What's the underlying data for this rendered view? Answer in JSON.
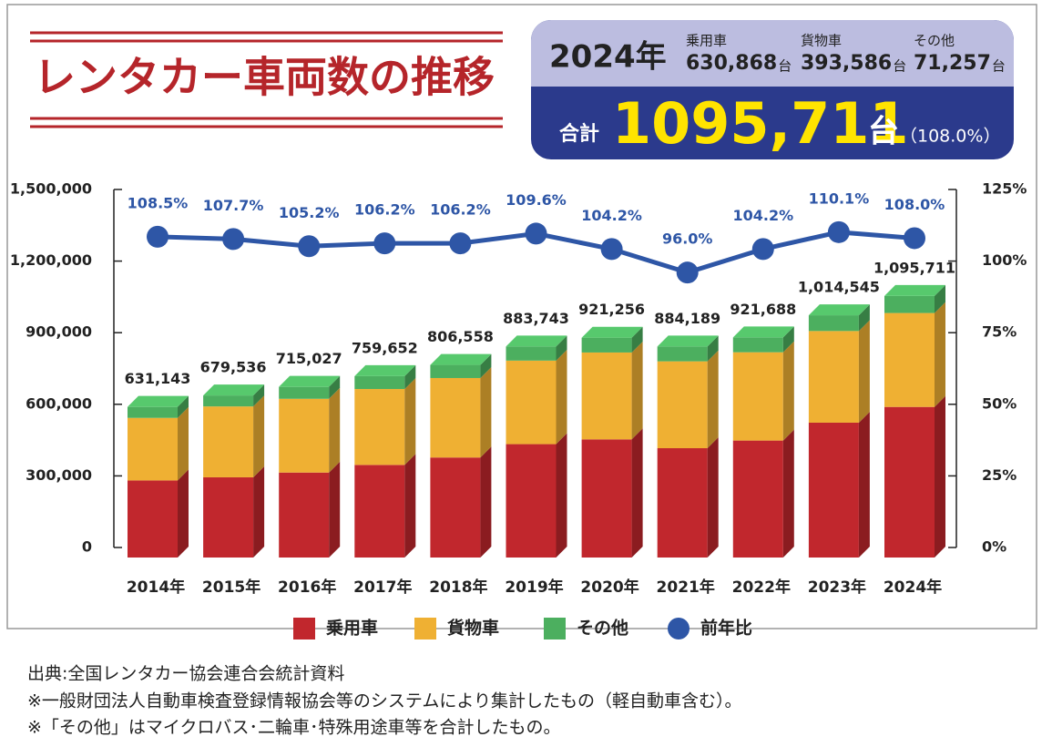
{
  "title": "レンタカー車両数の推移",
  "summary": {
    "year": "2024年",
    "items": [
      {
        "name": "乗用車",
        "value": "630,868",
        "unit": "台"
      },
      {
        "name": "貨物車",
        "value": "393,586",
        "unit": "台"
      },
      {
        "name": "その他",
        "value": "71,257",
        "unit": "台"
      }
    ],
    "total_label": "合計",
    "total": "1095,711",
    "total_unit": "台",
    "ratio": "（108.0%）"
  },
  "chart_data": {
    "type": "bar",
    "categories": [
      "2014年",
      "2015年",
      "2016年",
      "2017年",
      "2018年",
      "2019年",
      "2020年",
      "2021年",
      "2022年",
      "2023年",
      "2024年"
    ],
    "series": [
      {
        "name": "乗用車",
        "color": "#c1272d",
        "values": [
          323000,
          336000,
          356000,
          388000,
          419000,
          475000,
          495000,
          458000,
          490000,
          565000,
          630868
        ]
      },
      {
        "name": "貨物車",
        "color": "#efb033",
        "values": [
          262000,
          297000,
          309000,
          318000,
          333000,
          350000,
          364000,
          364000,
          370000,
          384000,
          393586
        ]
      },
      {
        "name": "その他",
        "color": "#4caf5f",
        "values": [
          46000,
          46000,
          50000,
          54000,
          55000,
          59000,
          62000,
          62000,
          62000,
          66000,
          71257
        ]
      },
      {
        "name": "前年比",
        "color": "#2e56a6",
        "type": "line",
        "axis": "y2",
        "values": [
          108.5,
          107.7,
          105.2,
          106.2,
          106.2,
          109.6,
          104.2,
          96.0,
          104.2,
          110.1,
          108.0
        ],
        "value_labels": [
          "108.5%",
          "107.7%",
          "105.2%",
          "106.2%",
          "106.2%",
          "109.6%",
          "104.2%",
          "96.0%",
          "104.2%",
          "110.1%",
          "108.0%"
        ]
      }
    ],
    "totals": [
      631143,
      679536,
      715027,
      759652,
      806558,
      883743,
      921256,
      884189,
      921688,
      1014545,
      1095711
    ],
    "total_labels": [
      "631,143",
      "679,536",
      "715,027",
      "759,652",
      "806,558",
      "883,743",
      "921,256",
      "884,189",
      "921,688",
      "1,014,545",
      "1,095,711"
    ],
    "ylim": [
      0,
      1500000
    ],
    "yticks": [
      0,
      {
        "value": 300000,
        "label": "300,000"
      },
      {
        "value": 600000,
        "label": "600,000"
      },
      {
        "value": 900000,
        "label": "900,000"
      },
      {
        "value": 1200000,
        "label": "1,200,000"
      },
      {
        "value": 1500000,
        "label": "1,500,000"
      }
    ],
    "y2lim": [
      0,
      125
    ],
    "y2ticks": [
      {
        "value": 0,
        "label": "0%"
      },
      {
        "value": 25,
        "label": "25%"
      },
      {
        "value": 50,
        "label": "50%"
      },
      {
        "value": 75,
        "label": "75%"
      },
      {
        "value": 100,
        "label": "100%"
      },
      {
        "value": 125,
        "label": "125%"
      }
    ],
    "legend": "bottom"
  },
  "notes": [
    "出典:全国レンタカー協会連合会統計資料",
    "※一般財団法人自動車検査登録情報協会等のシステムにより集計したもの（軽自動車含む）。",
    "※「その他」はマイクロバス･二輪車･特殊用途車等を合計したもの。"
  ]
}
